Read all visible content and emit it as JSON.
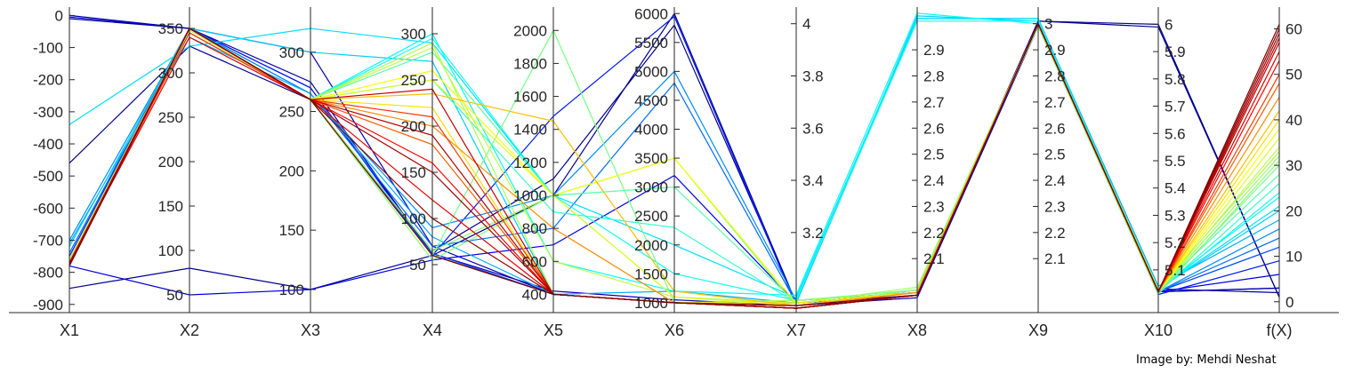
{
  "chart_data": {
    "type": "parallel-coordinates",
    "axes": [
      {
        "name": "X1",
        "ylim": [
          -920,
          15
        ],
        "ticks": [
          "0",
          "-100",
          "-200",
          "-300",
          "-400",
          "-500",
          "-600",
          "-700",
          "-800",
          "-900"
        ],
        "tick_side": "left"
      },
      {
        "name": "X2",
        "ylim": [
          32,
          370
        ],
        "ticks": [
          "350",
          "300",
          "250",
          "200",
          "150",
          "100",
          "50"
        ],
        "tick_side": "left"
      },
      {
        "name": "X3",
        "ylim": [
          82,
          335
        ],
        "ticks": [
          "300",
          "250",
          "200",
          "150",
          "100"
        ],
        "tick_side": "left"
      },
      {
        "name": "X4",
        "ylim": [
          0,
          325
        ],
        "ticks": [
          "300",
          "250",
          "200",
          "150",
          "100",
          "50"
        ],
        "tick_side": "left"
      },
      {
        "name": "X5",
        "ylim": [
          300,
          2120
        ],
        "ticks": [
          "2000",
          "1800",
          "1600",
          "1400",
          "1200",
          "1000",
          "800",
          "600",
          "400"
        ],
        "tick_side": "left"
      },
      {
        "name": "X6",
        "ylim": [
          860,
          6050
        ],
        "ticks": [
          "6000",
          "5500",
          "5000",
          "4500",
          "4000",
          "3500",
          "3000",
          "2500",
          "2000",
          "1500",
          "1000"
        ],
        "tick_side": "left"
      },
      {
        "name": "X7",
        "ylim": [
          2.9,
          4.05
        ],
        "ticks": [
          "4",
          "3.8",
          "3.6",
          "3.4",
          "3.2"
        ],
        "tick_side": "right"
      },
      {
        "name": "X8",
        "ylim": [
          1.9,
          3.05
        ],
        "ticks": [
          "2.9",
          "2.8",
          "2.7",
          "2.6",
          "2.5",
          "2.4",
          "2.3",
          "2.2",
          "2.1"
        ],
        "tick_side": "right"
      },
      {
        "name": "X9",
        "ylim": [
          1.9,
          3.05
        ],
        "ticks": [
          "3",
          "2.9",
          "2.8",
          "2.7",
          "2.6",
          "2.5",
          "2.4",
          "2.3",
          "2.2",
          "2.1"
        ],
        "tick_side": "right"
      },
      {
        "name": "X10",
        "ylim": [
          4.95,
          6.05
        ],
        "ticks": [
          "6",
          "5.9",
          "5.8",
          "5.7",
          "5.6",
          "5.5",
          "5.4",
          "5.3",
          "5.2",
          "5.1"
        ],
        "tick_side": "right"
      },
      {
        "name": "f(X)",
        "ylim": [
          -2,
          64
        ],
        "ticks": [
          "60",
          "50",
          "40",
          "30",
          "20",
          "10",
          "0"
        ],
        "tick_side": "right"
      }
    ],
    "colormap": "jet",
    "color_variable": "f(X)",
    "grid": false,
    "lines": [
      {
        "values": [
          -10,
          350,
          275,
          60,
          400,
          1000,
          2.93,
          1.96,
          3.0,
          5.03,
          2
        ]
      },
      {
        "values": [
          -5,
          350,
          270,
          62,
          420,
          1050,
          2.92,
          1.95,
          2.99,
          5.02,
          3
        ]
      },
      {
        "values": [
          0,
          350,
          300,
          70,
          400,
          1000,
          2.94,
          1.97,
          3.0,
          5.02,
          3
        ]
      },
      {
        "values": [
          -850,
          80,
          100,
          60,
          1000,
          6000,
          2.93,
          1.97,
          3.01,
          6.0,
          1
        ]
      },
      {
        "values": [
          -460,
          330,
          260,
          65,
          1100,
          5800,
          2.93,
          1.97,
          3.01,
          5.99,
          1
        ]
      },
      {
        "values": [
          -780,
          50,
          100,
          55,
          700,
          3200,
          2.93,
          1.97,
          3.0,
          5.02,
          6
        ]
      },
      {
        "values": [
          -750,
          350,
          270,
          60,
          1480,
          5950,
          2.92,
          1.98,
          3.0,
          5.01,
          9
        ]
      },
      {
        "values": [
          -760,
          345,
          260,
          62,
          400,
          1000,
          2.92,
          1.96,
          3.0,
          5.02,
          12
        ]
      },
      {
        "values": [
          -740,
          350,
          265,
          70,
          800,
          4800,
          2.93,
          1.97,
          3.0,
          5.02,
          14
        ]
      },
      {
        "values": [
          -700,
          350,
          265,
          90,
          1000,
          5000,
          2.94,
          1.97,
          3.0,
          5.02,
          16
        ]
      },
      {
        "values": [
          -710,
          340,
          265,
          80,
          400,
          1200,
          2.93,
          3.02,
          3.02,
          5.04,
          18
        ]
      },
      {
        "values": [
          -720,
          350,
          300,
          270,
          400,
          1000,
          2.93,
          3.03,
          3.01,
          5.03,
          20
        ]
      },
      {
        "values": [
          -340,
          330,
          320,
          290,
          1000,
          2000,
          2.95,
          3.02,
          3.02,
          5.03,
          21
        ]
      },
      {
        "values": [
          -770,
          350,
          260,
          300,
          600,
          1200,
          2.96,
          3.04,
          3.0,
          5.03,
          23
        ]
      },
      {
        "values": [
          -760,
          345,
          260,
          295,
          1000,
          1500,
          2.94,
          3.01,
          3.01,
          5.02,
          24
        ]
      },
      {
        "values": [
          -760,
          350,
          260,
          250,
          900,
          2300,
          2.93,
          1.97,
          3.0,
          5.02,
          26
        ]
      },
      {
        "values": [
          -760,
          350,
          260,
          280,
          1000,
          3000,
          2.93,
          1.97,
          3.0,
          5.03,
          28
        ]
      },
      {
        "values": [
          -770,
          350,
          260,
          60,
          2000,
          1000,
          2.94,
          1.98,
          3.0,
          5.02,
          30
        ]
      },
      {
        "values": [
          -770,
          350,
          260,
          55,
          1000,
          3500,
          2.92,
          1.98,
          2.99,
          5.01,
          31
        ]
      },
      {
        "values": [
          -760,
          350,
          260,
          65,
          1000,
          1100,
          2.93,
          1.99,
          3.0,
          5.02,
          32
        ]
      },
      {
        "values": [
          -760,
          350,
          260,
          290,
          400,
          1000,
          2.94,
          1.97,
          3.0,
          5.03,
          33
        ]
      },
      {
        "values": [
          -765,
          348,
          260,
          285,
          600,
          1100,
          2.93,
          1.97,
          3.0,
          5.02,
          34
        ]
      },
      {
        "values": [
          -770,
          350,
          260,
          250,
          1000,
          1100,
          2.92,
          1.96,
          3.0,
          5.02,
          36
        ]
      },
      {
        "values": [
          -770,
          350,
          260,
          260,
          1000,
          3500,
          2.93,
          1.97,
          3.0,
          5.02,
          38
        ]
      },
      {
        "values": [
          -770,
          350,
          260,
          220,
          400,
          1000,
          2.93,
          1.97,
          3.0,
          5.02,
          40
        ]
      },
      {
        "values": [
          -770,
          350,
          260,
          235,
          1450,
          1200,
          2.92,
          1.97,
          3.0,
          5.02,
          42
        ]
      },
      {
        "values": [
          -770,
          350,
          260,
          200,
          800,
          1000,
          2.92,
          1.97,
          3.0,
          5.02,
          45
        ]
      },
      {
        "values": [
          -770,
          350,
          260,
          180,
          400,
          1000,
          2.92,
          1.96,
          3.0,
          5.02,
          48
        ]
      },
      {
        "values": [
          -770,
          345,
          260,
          210,
          400,
          1000,
          2.91,
          1.96,
          3.0,
          5.02,
          50
        ]
      },
      {
        "values": [
          -770,
          350,
          260,
          160,
          400,
          1000,
          2.91,
          1.96,
          3.0,
          5.02,
          53
        ]
      },
      {
        "values": [
          -770,
          340,
          260,
          120,
          400,
          1000,
          2.91,
          1.96,
          3.0,
          5.02,
          55
        ]
      },
      {
        "values": [
          -775,
          350,
          260,
          240,
          400,
          1000,
          2.91,
          1.96,
          3.0,
          5.02,
          57
        ]
      },
      {
        "values": [
          -780,
          350,
          260,
          190,
          400,
          1000,
          2.91,
          1.96,
          3.0,
          5.02,
          58
        ]
      },
      {
        "values": [
          -780,
          350,
          260,
          150,
          400,
          1000,
          2.91,
          1.96,
          3.0,
          5.02,
          59
        ]
      },
      {
        "values": [
          -780,
          350,
          260,
          100,
          400,
          1000,
          2.91,
          1.96,
          3.0,
          5.02,
          60
        ]
      },
      {
        "values": [
          -775,
          350,
          260,
          60,
          400,
          1000,
          2.92,
          1.96,
          3.0,
          5.02,
          61
        ]
      }
    ]
  },
  "credit": "Image by: Mehdi Neshat"
}
